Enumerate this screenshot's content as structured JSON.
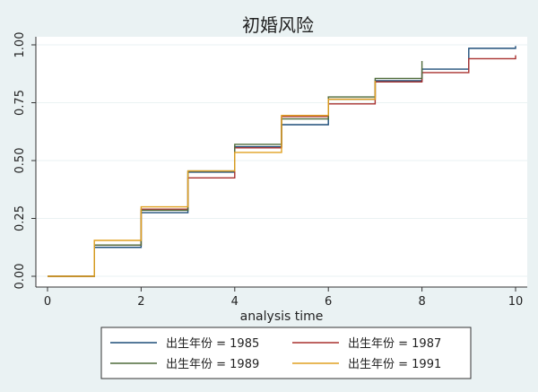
{
  "chart_data": {
    "type": "line",
    "step": true,
    "title": "初婚风险",
    "xlabel": "analysis time",
    "ylabel": "",
    "xlim": [
      0,
      10
    ],
    "ylim": [
      0,
      1
    ],
    "xticks": [
      "0",
      "2",
      "4",
      "6",
      "8",
      "10"
    ],
    "yticks": [
      "0.00",
      "0.25",
      "0.50",
      "0.75",
      "1.00"
    ],
    "grid": {
      "horizontal": true,
      "vertical": false,
      "color": "#eaf2f3"
    },
    "legend_position": "bottom",
    "background": "#eaf2f3",
    "plot_background": "#ffffff",
    "series": [
      {
        "name": "出生年份 = 1985",
        "color": "#1f4e79",
        "x": [
          0,
          1,
          2,
          3,
          4,
          5,
          6,
          7,
          8,
          9,
          10
        ],
        "y": [
          0.0,
          0.125,
          0.275,
          0.45,
          0.56,
          0.655,
          0.765,
          0.845,
          0.895,
          0.985,
          0.995
        ]
      },
      {
        "name": "出生年份 = 1987",
        "color": "#a8302f",
        "x": [
          0,
          1,
          2,
          3,
          4,
          5,
          6,
          7,
          8,
          9,
          10
        ],
        "y": [
          0.0,
          0.135,
          0.29,
          0.425,
          0.555,
          0.69,
          0.745,
          0.84,
          0.88,
          0.94,
          0.955
        ]
      },
      {
        "name": "出生年份 = 1989",
        "color": "#4f6b3a",
        "x": [
          0,
          1,
          2,
          3,
          4,
          5,
          6,
          7,
          8
        ],
        "y": [
          0.0,
          0.135,
          0.285,
          0.455,
          0.57,
          0.68,
          0.775,
          0.855,
          0.93
        ]
      },
      {
        "name": "出生年份 = 1991",
        "color": "#e0a020",
        "x": [
          0,
          1,
          2,
          3,
          4,
          5,
          6,
          7
        ],
        "y": [
          0.0,
          0.155,
          0.3,
          0.455,
          0.535,
          0.695,
          0.765,
          0.845
        ]
      }
    ]
  }
}
